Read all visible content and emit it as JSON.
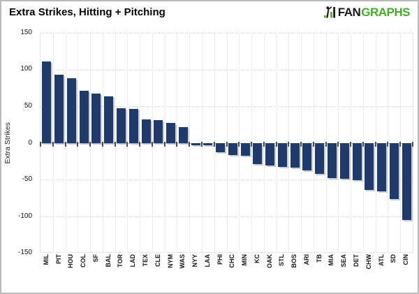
{
  "header": {
    "title": "Extra Strikes, Hitting + Pitching",
    "logo": {
      "prefix": "FAN",
      "suffix": "GRAPHS",
      "prefix_color": "#171717",
      "suffix_color": "#46ab2b",
      "icon": "fangraphs-batter-icon",
      "icon_green": "#46ab2b",
      "icon_dark": "#1b1b1b"
    }
  },
  "chart_data": {
    "type": "bar",
    "title": "Extra Strikes, Hitting + Pitching",
    "xlabel": "",
    "ylabel": "Extra Strikes",
    "ylim": [
      -150,
      150
    ],
    "yticks": [
      150,
      100,
      50,
      0,
      -50,
      -100,
      -150
    ],
    "grid": "horizontal dotted lines every 50, vertical light category separators",
    "legend": "none",
    "bar_color": "#203a69",
    "categories": [
      "MIL",
      "PIT",
      "HOU",
      "COL",
      "SF",
      "BAL",
      "TOR",
      "LAD",
      "TEX",
      "CLE",
      "NYM",
      "WAS",
      "NYY",
      "LAA",
      "PHI",
      "CHC",
      "MIN",
      "KC",
      "OAK",
      "STL",
      "BOS",
      "ARI",
      "TB",
      "MIA",
      "SEA",
      "DET",
      "CHW",
      "ATL",
      "SD",
      "CIN"
    ],
    "values": [
      111,
      93,
      88,
      71,
      67,
      63,
      47,
      46,
      32,
      31,
      27,
      21,
      -3,
      -3,
      -13,
      -17,
      -18,
      -29,
      -31,
      -33,
      -34,
      -38,
      -42,
      -48,
      -49,
      -51,
      -64,
      -66,
      -77,
      -105
    ]
  }
}
